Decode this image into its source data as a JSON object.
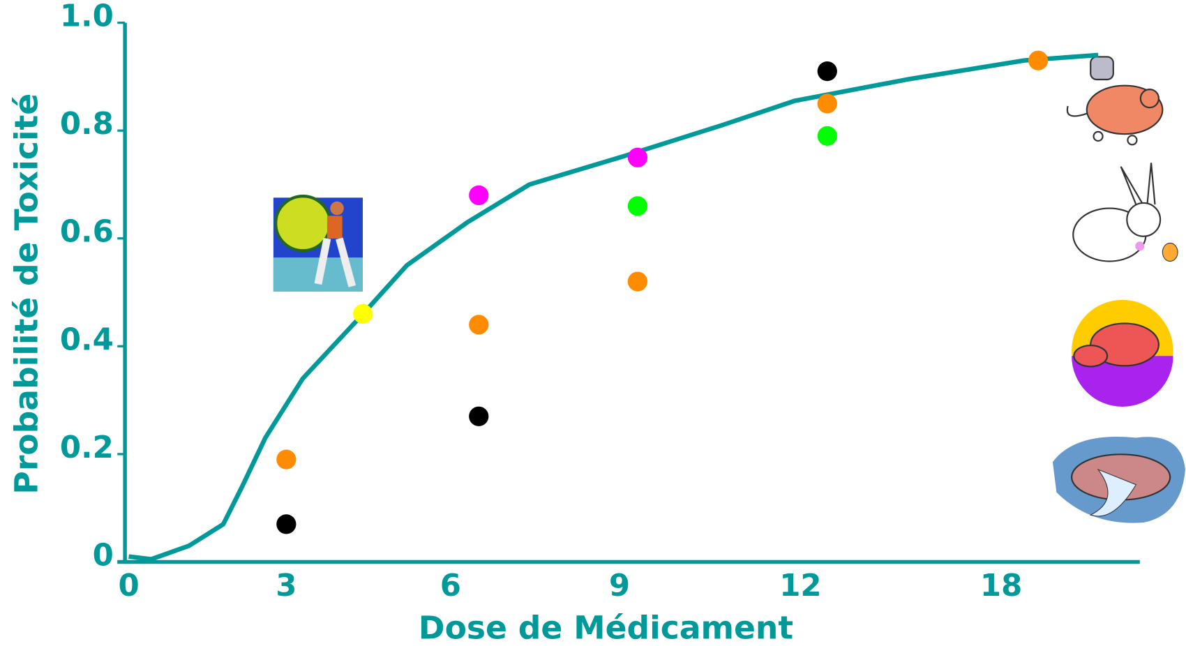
{
  "chart_data": {
    "type": "scatter",
    "y_label": "Probabilité de Toxicité",
    "x_label": "Dose de Médicament",
    "color": "#009999",
    "xlim": [
      0,
      21
    ],
    "ylim": [
      0,
      1
    ],
    "xticks": [
      0,
      3,
      6,
      9,
      12,
      18
    ],
    "yticks": [
      0,
      0.2,
      0.4,
      0.6,
      0.8,
      {
        "value": 1,
        "label": "1.0"
      }
    ],
    "points": {
      "x": [
        3.0,
        3.0,
        4.4,
        6.5,
        6.5,
        6.5,
        9.3,
        9.3,
        9.3,
        12.8,
        12.8,
        12.8,
        18.8
      ],
      "values": [
        0.07,
        0.19,
        0.46,
        0.68,
        0.44,
        0.27,
        0.75,
        0.66,
        0.52,
        0.91,
        0.85,
        0.79,
        0.93
      ],
      "colors": [
        "#000000",
        "#ff8c00",
        "#ffff00",
        "#ff00ff",
        "#ff8c00",
        "#000000",
        "#ff00ff",
        "#00ff00",
        "#ff8c00",
        "#000000",
        "#ff8c00",
        "#00ff00",
        "#ff8c00"
      ]
    },
    "curve": {
      "x": [
        0,
        0.43,
        1.15,
        1.8,
        2.16,
        2.6,
        3.3,
        4.4,
        5.2,
        6.3,
        7.4,
        9,
        10.7,
        11.9,
        15.2,
        18.5,
        20.1
      ],
      "values": [
        0.01,
        0.005,
        0.03,
        0.07,
        0.14,
        0.23,
        0.34,
        0.46,
        0.55,
        0.63,
        0.7,
        0.75,
        0.81,
        0.855,
        0.895,
        0.93,
        0.94
      ]
    }
  }
}
